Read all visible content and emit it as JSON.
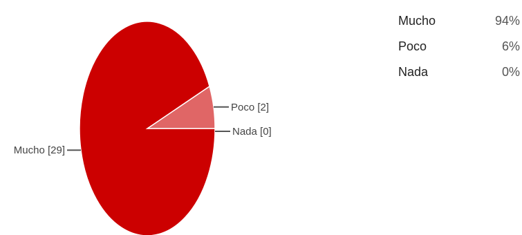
{
  "chart_data": {
    "type": "pie",
    "slices": [
      {
        "label": "Mucho",
        "value": 29,
        "slice_label": "Mucho [29]",
        "color": "#cc0000"
      },
      {
        "label": "Poco",
        "value": 2,
        "slice_label": "Poco [2]",
        "color": "#e06666"
      },
      {
        "label": "Nada",
        "value": 0,
        "slice_label": "Nada [0]",
        "color": "#f4cccc"
      }
    ]
  },
  "summary": {
    "rows": [
      {
        "label": "Mucho",
        "percent": "94%"
      },
      {
        "label": "Poco",
        "percent": "6%"
      },
      {
        "label": "Nada",
        "percent": "0%"
      }
    ]
  }
}
